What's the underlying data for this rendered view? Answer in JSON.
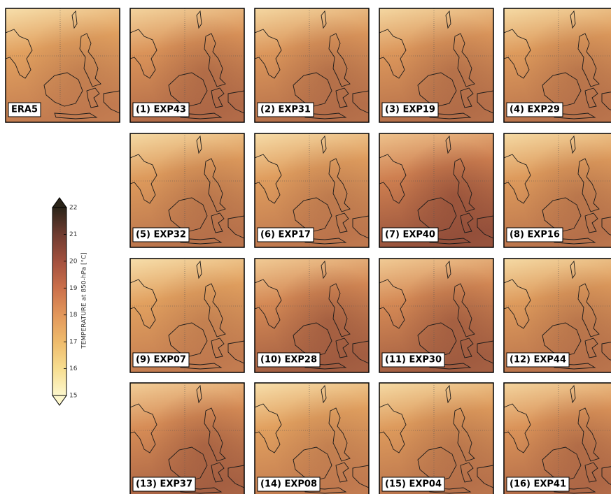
{
  "colorbar": {
    "label": "TEMPERATURE at 850-hPa [°C]",
    "range": [
      15,
      22
    ],
    "ticks": [
      15,
      16,
      17,
      18,
      19,
      20,
      21,
      22
    ]
  },
  "panels": [
    {
      "label": "ERA5"
    },
    {
      "label": "(1) EXP43"
    },
    {
      "label": "(2) EXP31"
    },
    {
      "label": "(3) EXP19"
    },
    {
      "label": "(4) EXP29"
    },
    {
      "label": "(5) EXP32"
    },
    {
      "label": "(6) EXP17"
    },
    {
      "label": "(7) EXP40"
    },
    {
      "label": "(8) EXP16"
    },
    {
      "label": "(9) EXP07"
    },
    {
      "label": "(10) EXP28"
    },
    {
      "label": "(11) EXP30"
    },
    {
      "label": "(12) EXP44"
    },
    {
      "label": "(13) EXP37"
    },
    {
      "label": "(14) EXP08"
    },
    {
      "label": "(15) EXP04"
    },
    {
      "label": "(16) EXP41"
    }
  ]
}
